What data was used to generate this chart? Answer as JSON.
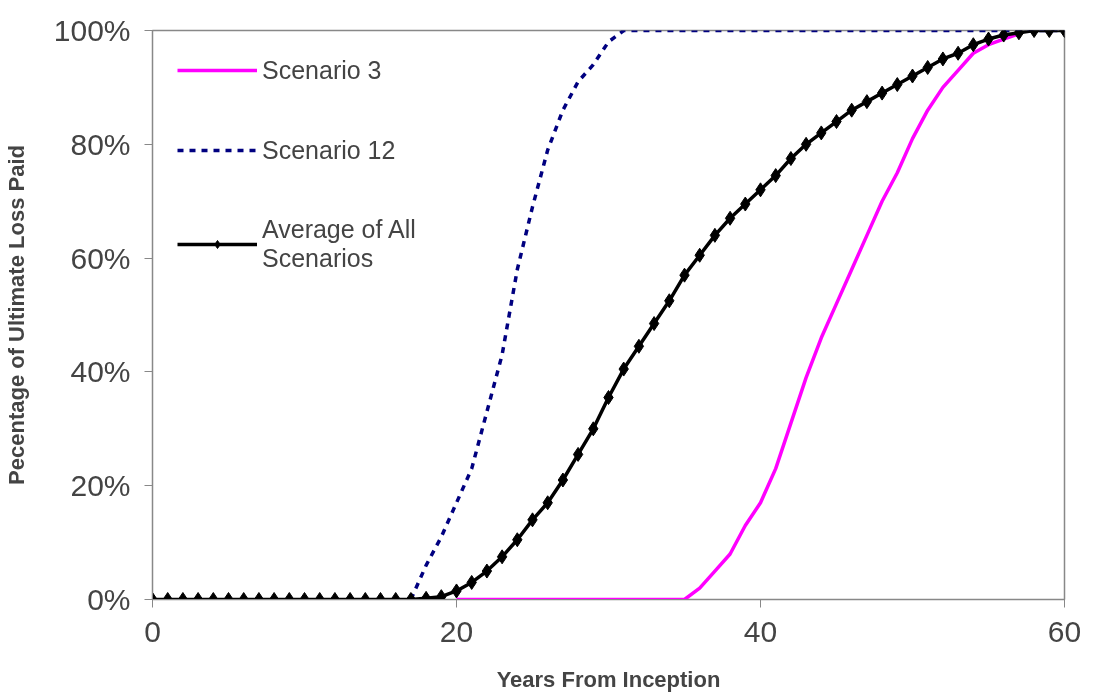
{
  "chart_data": {
    "type": "line",
    "xlabel": "Years From Inception",
    "ylabel": "Pecentage of Ultimate Loss Paid",
    "xlim": [
      0,
      60
    ],
    "xticks": [
      0,
      20,
      40,
      60
    ],
    "ylim": [
      0,
      100
    ],
    "yticks": [
      {
        "value": 0,
        "label": "0%"
      },
      {
        "value": 20,
        "label": "20%"
      },
      {
        "value": 40,
        "label": "40%"
      },
      {
        "value": 60,
        "label": "60%"
      },
      {
        "value": 80,
        "label": "80%"
      },
      {
        "value": 100,
        "label": "100%"
      }
    ],
    "grid": false,
    "legend": "top left",
    "series": [
      {
        "name": "Scenario 3",
        "color": "#ff00ff",
        "marker": "none",
        "line_style": "solid",
        "x": [
          20,
          25,
          30,
          35,
          36,
          37,
          38,
          39,
          40,
          41,
          42,
          43,
          44,
          45,
          46,
          47,
          48,
          49,
          50,
          51,
          52,
          53,
          54,
          55,
          56,
          57
        ],
        "values": [
          0,
          0,
          0,
          0,
          2,
          5,
          8,
          13,
          17,
          23,
          31,
          39,
          46,
          52,
          58,
          64,
          70,
          75,
          81,
          86,
          90,
          93,
          96,
          97.5,
          98.5,
          99.4
        ]
      },
      {
        "name": "Scenario 12",
        "color": "#000080",
        "marker": "none",
        "line_style": "dashed",
        "x": [
          17,
          18,
          19,
          20,
          21,
          22,
          23,
          24,
          25,
          26,
          27,
          28,
          29,
          30,
          31,
          35,
          40,
          45,
          50,
          55,
          60
        ],
        "values": [
          0,
          6,
          11,
          17,
          23,
          33,
          43,
          58,
          69,
          79,
          86,
          91,
          94,
          98,
          100,
          100,
          100,
          100,
          100,
          100,
          100
        ]
      },
      {
        "name": "Average of All Scenarios",
        "color": "#000000",
        "marker": "diamond",
        "line_style": "solid",
        "x": [
          0,
          1,
          2,
          3,
          4,
          5,
          6,
          7,
          8,
          9,
          10,
          11,
          12,
          13,
          14,
          15,
          16,
          17,
          18,
          19,
          20,
          21,
          22,
          23,
          24,
          25,
          26,
          27,
          28,
          29,
          30,
          31,
          32,
          33,
          34,
          35,
          36,
          37,
          38,
          39,
          40,
          41,
          42,
          43,
          44,
          45,
          46,
          47,
          48,
          49,
          50,
          51,
          52,
          53,
          54,
          55,
          56,
          57,
          58,
          59,
          60
        ],
        "values": [
          0,
          0,
          0,
          0,
          0,
          0,
          0,
          0,
          0,
          0,
          0,
          0,
          0,
          0,
          0,
          0,
          0,
          0,
          0.2,
          0.5,
          1.5,
          3,
          5,
          7.5,
          10.5,
          14,
          17,
          21,
          25.5,
          30,
          35.5,
          40.5,
          44.5,
          48.5,
          52.5,
          57,
          60.5,
          64,
          67,
          69.5,
          72,
          74.5,
          77.5,
          80,
          82,
          84,
          86,
          87.5,
          89,
          90.5,
          92,
          93.5,
          95,
          96,
          97.5,
          98.5,
          99.2,
          99.6,
          100,
          100,
          100
        ]
      }
    ]
  }
}
